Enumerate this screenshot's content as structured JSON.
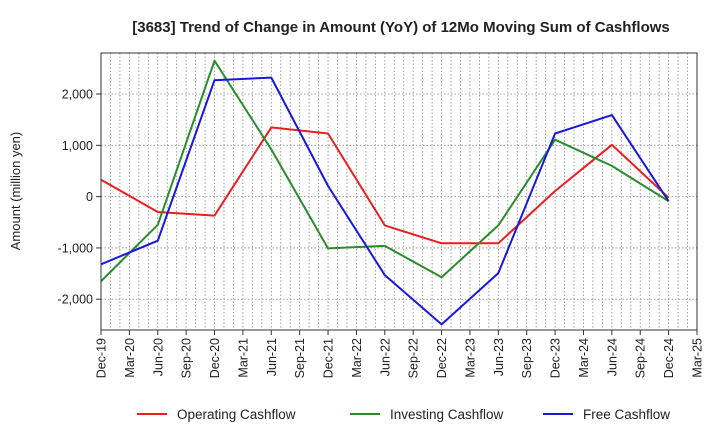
{
  "chart_data": {
    "type": "line",
    "title": "[3683]  Trend of Change in Amount (YoY) of 12Mo Moving Sum of Cashflows",
    "xlabel": "",
    "ylabel": "Amount (million yen)",
    "ylim": [
      -2600,
      2800
    ],
    "yticks": [
      -2000,
      -1000,
      0,
      1000,
      2000
    ],
    "ytick_labels": [
      "-2,000",
      "-1,000",
      "0",
      "1,000",
      "2,000"
    ],
    "categories": [
      "Dec-19",
      "Mar-20",
      "Jun-20",
      "Sep-20",
      "Dec-20",
      "Mar-21",
      "Jun-21",
      "Sep-21",
      "Dec-21",
      "Mar-22",
      "Jun-22",
      "Sep-22",
      "Dec-22",
      "Mar-23",
      "Jun-23",
      "Sep-23",
      "Dec-23",
      "Mar-24",
      "Jun-24",
      "Sep-24",
      "Dec-24",
      "Mar-25"
    ],
    "grid": true,
    "legend_position": "bottom",
    "series": [
      {
        "name": "Operating Cashflow",
        "color": "#ee1c1c",
        "values": [
          330,
          null,
          -300,
          null,
          -370,
          null,
          1350,
          null,
          1230,
          null,
          -560,
          null,
          -910,
          null,
          -910,
          null,
          110,
          null,
          1010,
          null,
          -20,
          null
        ]
      },
      {
        "name": "Investing Cashflow",
        "color": "#2a8c2a",
        "values": [
          -1650,
          null,
          -550,
          null,
          2650,
          null,
          920,
          null,
          -1010,
          null,
          -960,
          null,
          -1570,
          null,
          -560,
          null,
          1110,
          null,
          600,
          null,
          -90,
          null
        ]
      },
      {
        "name": "Free Cashflow",
        "color": "#1818dd",
        "values": [
          -1320,
          null,
          -860,
          null,
          2270,
          null,
          2320,
          null,
          210,
          null,
          -1530,
          null,
          -2490,
          null,
          -1490,
          null,
          1230,
          null,
          1590,
          null,
          -90,
          null
        ]
      }
    ]
  }
}
